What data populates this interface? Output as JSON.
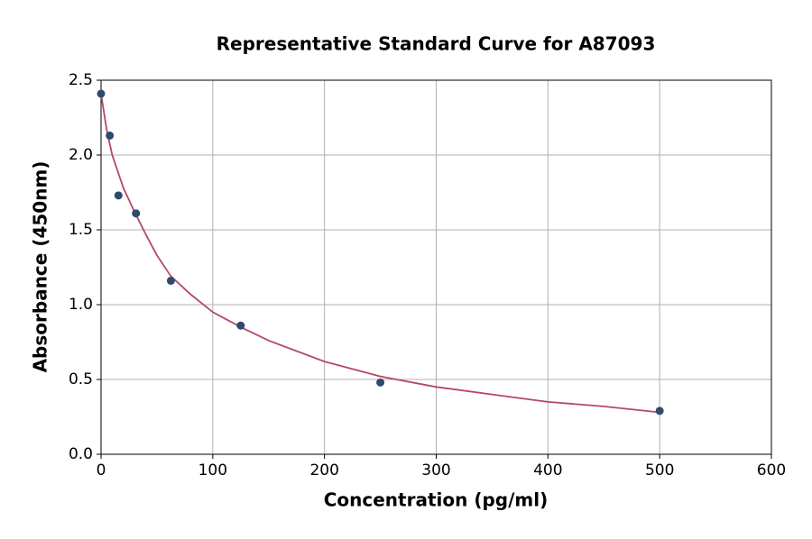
{
  "chart_data": {
    "type": "scatter",
    "title": "Representative Standard Curve for A87093",
    "x_label": "Concentration (pg/ml)",
    "y_label": "Absorbance (450nm)",
    "x": [
      0,
      7.8,
      15.6,
      31.25,
      62.5,
      125,
      250,
      500
    ],
    "values": [
      2.41,
      2.13,
      1.73,
      1.61,
      1.16,
      0.86,
      0.48,
      0.29
    ],
    "color": "#2e4a6e",
    "fit": {
      "type": "line",
      "color": "#b5476b",
      "x": [
        0,
        5,
        10,
        20,
        30,
        40,
        50,
        62.5,
        80,
        100,
        125,
        150,
        200,
        250,
        300,
        350,
        400,
        450,
        500
      ],
      "values": [
        2.41,
        2.17,
        2.0,
        1.78,
        1.62,
        1.47,
        1.33,
        1.19,
        1.07,
        0.95,
        0.85,
        0.76,
        0.62,
        0.52,
        0.45,
        0.4,
        0.35,
        0.32,
        0.28
      ]
    },
    "xlim": [
      0,
      600
    ],
    "xticks": [
      0,
      100,
      200,
      300,
      400,
      500,
      600
    ],
    "ylim": [
      0,
      2.5
    ],
    "yticks": [
      {
        "value": 0,
        "label": "0.0"
      },
      {
        "value": 0.5,
        "label": "0.5"
      },
      {
        "value": 1,
        "label": "1.0"
      },
      {
        "value": 1.5,
        "label": "1.5"
      },
      {
        "value": 2,
        "label": "2.0"
      },
      {
        "value": 2.5,
        "label": "2.5"
      }
    ],
    "grid": true
  }
}
